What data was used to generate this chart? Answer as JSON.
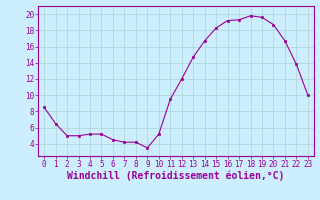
{
  "x": [
    0,
    1,
    2,
    3,
    4,
    5,
    6,
    7,
    8,
    9,
    10,
    11,
    12,
    13,
    14,
    15,
    16,
    17,
    18,
    19,
    20,
    21,
    22,
    23
  ],
  "y": [
    8.5,
    6.5,
    5.0,
    5.0,
    5.2,
    5.2,
    4.5,
    4.2,
    4.2,
    3.5,
    5.2,
    9.5,
    12.0,
    14.7,
    16.7,
    18.3,
    19.2,
    19.3,
    19.8,
    19.6,
    18.7,
    16.7,
    13.8,
    10.0
  ],
  "line_color": "#990099",
  "marker": "s",
  "markersize": 2,
  "linewidth": 0.8,
  "bg_color": "#cceeff",
  "grid_color": "#b0d8d8",
  "xlim": [
    -0.5,
    23.5
  ],
  "ylim": [
    2.5,
    21
  ],
  "yticks": [
    4,
    6,
    8,
    10,
    12,
    14,
    16,
    18,
    20
  ],
  "xticks": [
    0,
    1,
    2,
    3,
    4,
    5,
    6,
    7,
    8,
    9,
    10,
    11,
    12,
    13,
    14,
    15,
    16,
    17,
    18,
    19,
    20,
    21,
    22,
    23
  ],
  "tick_label_fontsize": 5.5,
  "xlabel_fontsize": 7,
  "tick_color": "#990099",
  "label_color": "#990099",
  "xlabel": "Windchill (Refroidissement éolien,°C)"
}
